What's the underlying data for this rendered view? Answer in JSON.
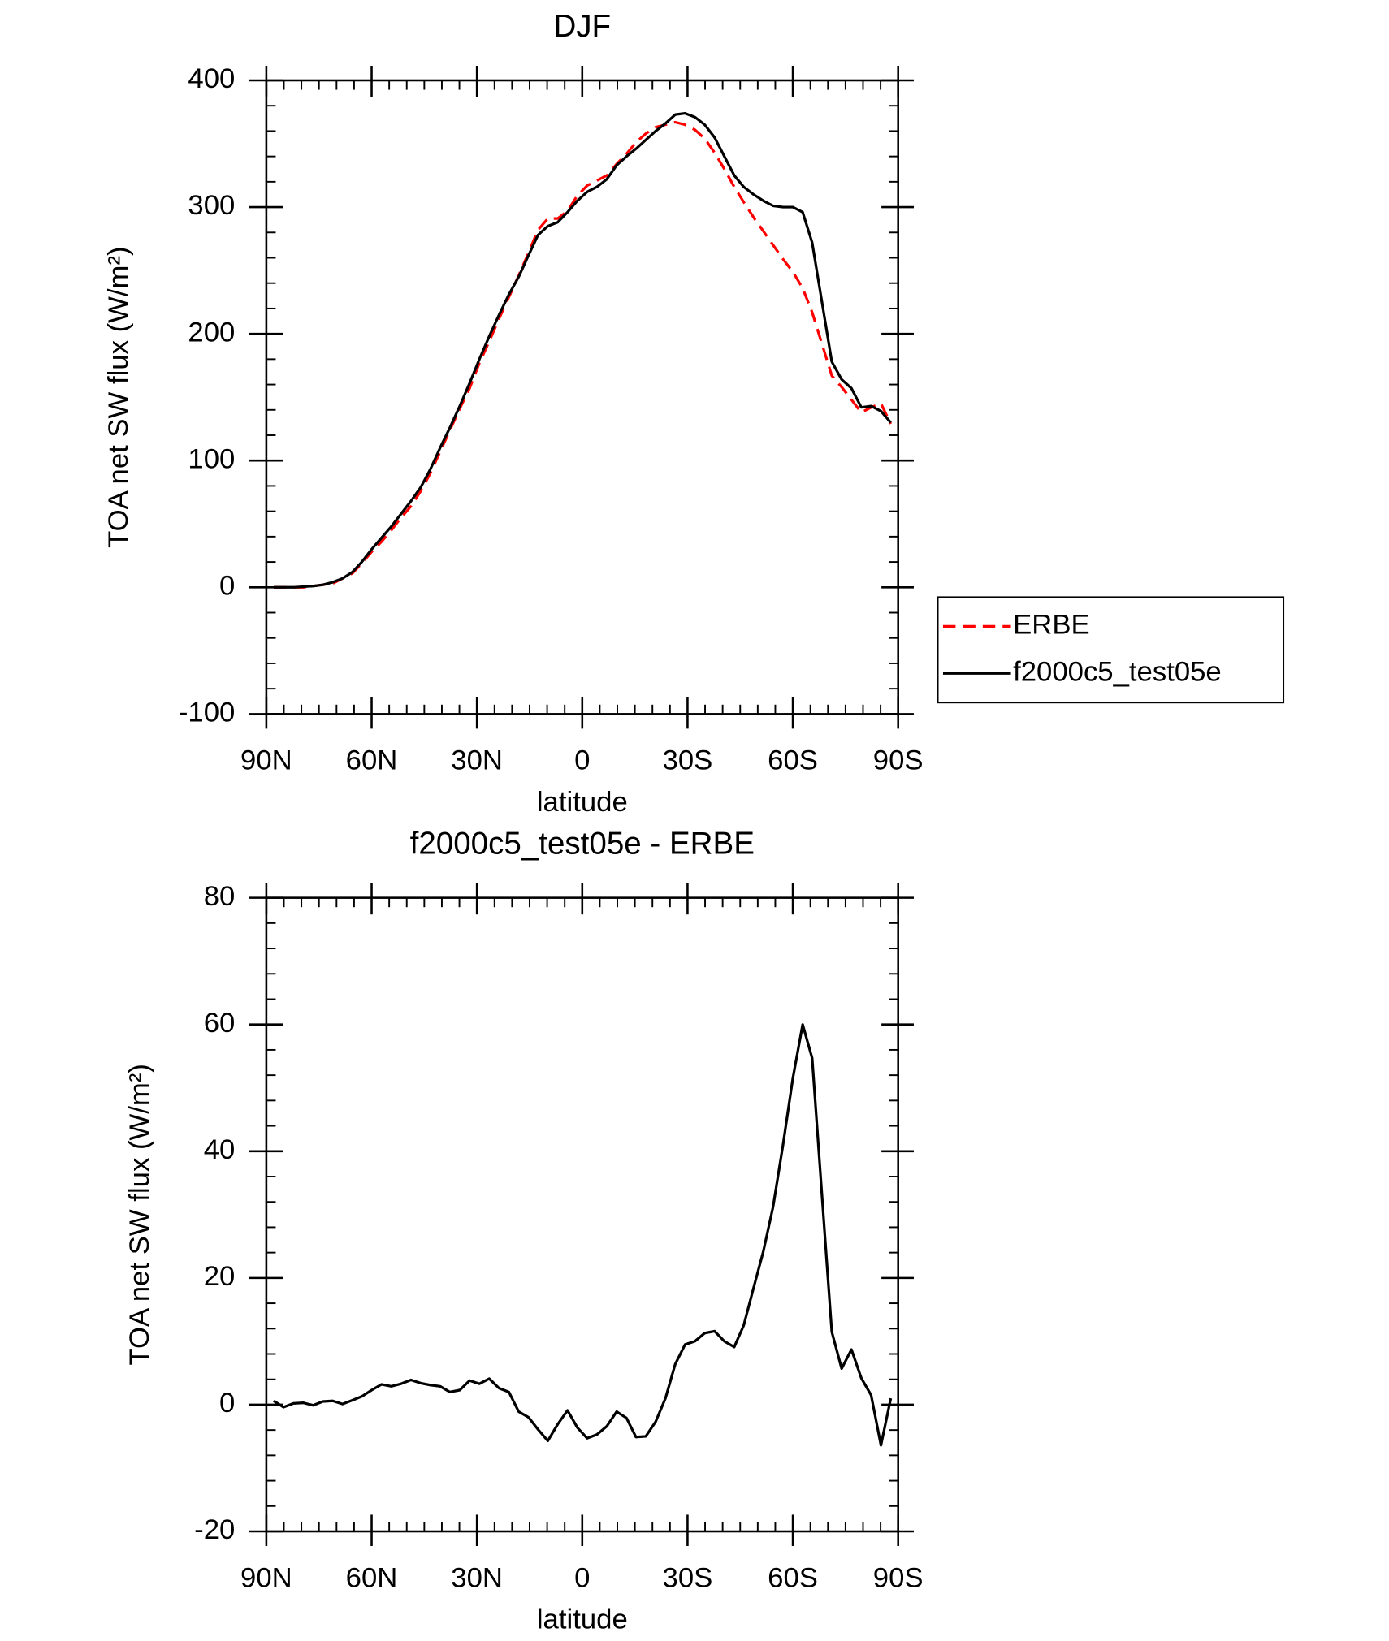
{
  "chart_data": [
    {
      "type": "line",
      "title": "DJF",
      "xlabel": "latitude",
      "ylabel": "TOA net SW flux (W/m²)",
      "x": [
        87.9,
        85.1,
        82.3,
        79.5,
        76.7,
        73.9,
        71.1,
        68.3,
        65.5,
        62.8,
        60.0,
        57.2,
        54.4,
        51.6,
        48.8,
        46.0,
        43.3,
        40.5,
        37.7,
        34.9,
        32.1,
        29.3,
        26.5,
        23.7,
        20.9,
        18.1,
        15.3,
        12.6,
        9.8,
        7.0,
        4.2,
        1.4,
        -1.4,
        -4.2,
        -7.0,
        -9.8,
        -12.6,
        -15.3,
        -18.1,
        -20.9,
        -23.7,
        -26.5,
        -29.3,
        -32.1,
        -34.9,
        -37.7,
        -40.5,
        -43.3,
        -46.0,
        -48.8,
        -51.6,
        -54.4,
        -57.2,
        -60.0,
        -62.8,
        -65.5,
        -68.3,
        -71.1,
        -73.9,
        -76.7,
        -79.5,
        -82.3,
        -85.1,
        -87.9
      ],
      "series": [
        {
          "name": "ERBE",
          "color": "#ff0000",
          "line_style": "dashed",
          "values": [
            0,
            0,
            0,
            0,
            1,
            2,
            3,
            7,
            11,
            19,
            28,
            36,
            45,
            55,
            64,
            76,
            90,
            107,
            124,
            141,
            157,
            177,
            194,
            212,
            229,
            246,
            264,
            282,
            291,
            291,
            297,
            309,
            317,
            321,
            325,
            334,
            342,
            351,
            358,
            363,
            365,
            367,
            365,
            361,
            354,
            343,
            330,
            316,
            304,
            292,
            281,
            270,
            259,
            249,
            236,
            217,
            192,
            167,
            158,
            148,
            138,
            142,
            145,
            129
          ]
        },
        {
          "name": "f2000c5_test05e",
          "color": "#000000",
          "line_style": "solid",
          "values": [
            0,
            0,
            0,
            0.5,
            1,
            2,
            4,
            7,
            12,
            20,
            30,
            39,
            48,
            58,
            68,
            79,
            93,
            110,
            126,
            143,
            161,
            180,
            198,
            215,
            231,
            245,
            262,
            278,
            285,
            288,
            296,
            305,
            312,
            316,
            322,
            333,
            340,
            346,
            353,
            360,
            366,
            373,
            374,
            371,
            365,
            355,
            340,
            325,
            316,
            310,
            305,
            301,
            300,
            300,
            296,
            272,
            225,
            178,
            164,
            157,
            142,
            143,
            139,
            130
          ]
        }
      ],
      "xlim": [
        90,
        -90
      ],
      "xticks": [
        {
          "value": 90,
          "label": "90N"
        },
        {
          "value": 60,
          "label": "60N"
        },
        {
          "value": 30,
          "label": "30N"
        },
        0,
        {
          "value": -30,
          "label": "30S"
        },
        {
          "value": -60,
          "label": "60S"
        },
        {
          "value": -90,
          "label": "90S"
        }
      ],
      "ylim": [
        -100,
        400
      ],
      "yticks": [
        -100,
        0,
        100,
        200,
        300,
        400
      ],
      "legend": "right"
    },
    {
      "type": "line",
      "title": "f2000c5_test05e - ERBE",
      "xlabel": "latitude",
      "ylabel": "TOA net SW flux (W/m²)",
      "x": [
        87.9,
        85.1,
        82.3,
        79.5,
        76.7,
        73.9,
        71.1,
        68.3,
        65.5,
        62.8,
        60.0,
        57.2,
        54.4,
        51.6,
        48.8,
        46.0,
        43.3,
        40.5,
        37.7,
        34.9,
        32.1,
        29.3,
        26.5,
        23.7,
        20.9,
        18.1,
        15.3,
        12.6,
        9.8,
        7.0,
        4.2,
        1.4,
        -1.4,
        -4.2,
        -7.0,
        -9.8,
        -12.6,
        -15.3,
        -18.1,
        -20.9,
        -23.7,
        -26.5,
        -29.3,
        -32.1,
        -34.9,
        -37.7,
        -40.5,
        -43.3,
        -46.0,
        -48.8,
        -51.6,
        -54.4,
        -57.2,
        -60.0,
        -62.8,
        -65.5,
        -68.3,
        -71.1,
        -73.9,
        -76.7,
        -79.5,
        -82.3,
        -85.1,
        -87.9
      ],
      "values": [
        0.6,
        -0.4,
        0.2,
        0.3,
        -0.1,
        0.5,
        0.6,
        0.1,
        0.7,
        1.3,
        2.3,
        3.2,
        2.9,
        3.3,
        3.9,
        3.4,
        3.1,
        2.9,
        2.0,
        2.3,
        3.8,
        3.3,
        4.1,
        2.6,
        2.0,
        -1.1,
        -2.0,
        -3.9,
        -5.7,
        -3.1,
        -0.9,
        -3.6,
        -5.3,
        -4.7,
        -3.4,
        -1.1,
        -2.1,
        -5.1,
        -5.0,
        -2.7,
        1.0,
        6.4,
        9.5,
        10.0,
        11.3,
        11.6,
        10.0,
        9.1,
        12.5,
        18.4,
        24.2,
        31.3,
        41.0,
        51.5,
        60.0,
        54.7,
        33.0,
        11.5,
        5.7,
        8.7,
        4.2,
        1.5,
        -6.4,
        1.0
      ],
      "color": "#000000",
      "xlim": [
        90,
        -90
      ],
      "xticks": [
        {
          "value": 90,
          "label": "90N"
        },
        {
          "value": 60,
          "label": "60N"
        },
        {
          "value": 30,
          "label": "30N"
        },
        0,
        {
          "value": -30,
          "label": "30S"
        },
        {
          "value": -60,
          "label": "60S"
        },
        {
          "value": -90,
          "label": "90S"
        }
      ],
      "ylim": [
        -20,
        80
      ],
      "yticks": [
        -20,
        0,
        20,
        40,
        60,
        80
      ]
    }
  ]
}
